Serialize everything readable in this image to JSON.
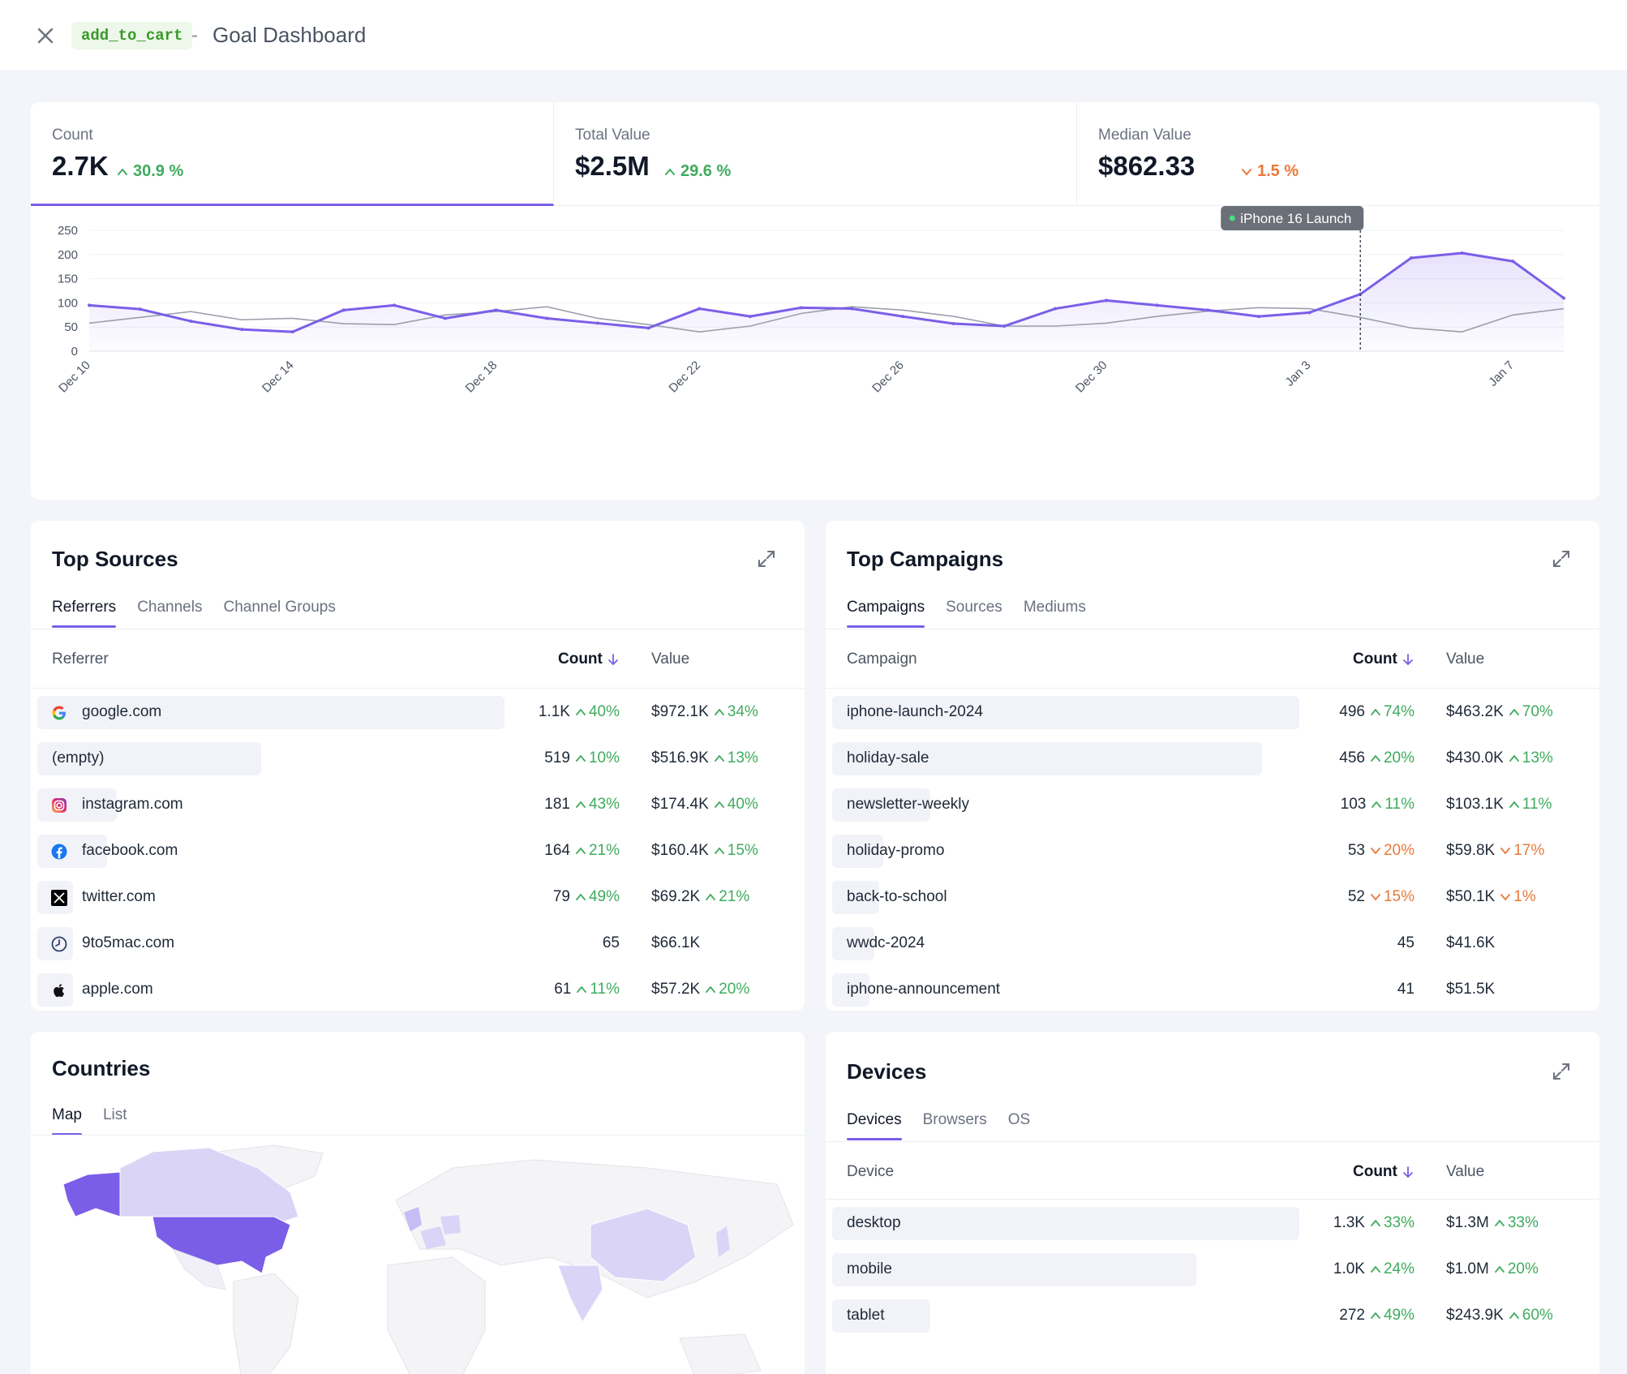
{
  "header": {
    "goal_tag": "add_to_cart",
    "separator": "-",
    "title": "Goal Dashboard"
  },
  "metrics": [
    {
      "label": "Count",
      "value": "2.7K",
      "delta": "30.9 %",
      "direction": "up"
    },
    {
      "label": "Total Value",
      "value": "$2.5M",
      "delta": "29.6 %",
      "direction": "up"
    },
    {
      "label": "Median Value",
      "value": "$862.33",
      "delta": "1.5 %",
      "direction": "down"
    }
  ],
  "chart_data": {
    "type": "line",
    "x": [
      "Dec 10",
      "Dec 11",
      "Dec 12",
      "Dec 13",
      "Dec 14",
      "Dec 15",
      "Dec 16",
      "Dec 17",
      "Dec 18",
      "Dec 19",
      "Dec 20",
      "Dec 21",
      "Dec 22",
      "Dec 23",
      "Dec 24",
      "Dec 25",
      "Dec 26",
      "Dec 27",
      "Dec 28",
      "Dec 29",
      "Dec 30",
      "Dec 31",
      "Jan 1",
      "Jan 2",
      "Jan 3",
      "Jan 4",
      "Jan 5",
      "Jan 6",
      "Jan 7",
      "Jan 8"
    ],
    "xticks": [
      "Dec 10",
      "Dec 14",
      "Dec 18",
      "Dec 22",
      "Dec 26",
      "Dec 30",
      "Jan 3",
      "Jan 7"
    ],
    "yticks": [
      0,
      50,
      100,
      150,
      200,
      250
    ],
    "ylim": [
      0,
      250
    ],
    "series": [
      {
        "role": "current",
        "color": "#7b5ee8",
        "values": [
          95,
          87,
          62,
          45,
          40,
          85,
          95,
          68,
          85,
          68,
          58,
          48,
          88,
          72,
          90,
          88,
          72,
          57,
          52,
          88,
          105,
          95,
          85,
          72,
          80,
          118,
          193,
          203,
          186,
          110
        ]
      },
      {
        "role": "previous",
        "color": "#9aa0aa",
        "values": [
          58,
          70,
          82,
          65,
          68,
          57,
          55,
          75,
          82,
          92,
          68,
          55,
          40,
          52,
          78,
          92,
          85,
          72,
          52,
          52,
          58,
          72,
          83,
          90,
          88,
          70,
          48,
          40,
          75,
          88
        ]
      }
    ],
    "annotation": {
      "label": "iPhone 16 Launch",
      "x": "Jan 4"
    }
  },
  "sources": {
    "title": "Top Sources",
    "tabs": [
      "Referrers",
      "Channels",
      "Channel Groups"
    ],
    "columns": {
      "name": "Referrer",
      "count": "Count",
      "value": "Value"
    },
    "rows": [
      {
        "icon": "google-icon",
        "name": "google.com",
        "count": "1.1K",
        "count_delta": "40%",
        "count_dir": "up",
        "value": "$972.1K",
        "value_delta": "34%",
        "value_dir": "up",
        "share": 1.0
      },
      {
        "icon": "",
        "name": "(empty)",
        "count": "519",
        "count_delta": "10%",
        "count_dir": "up",
        "value": "$516.9K",
        "value_delta": "13%",
        "value_dir": "up",
        "share": 0.48
      },
      {
        "icon": "instagram-icon",
        "name": "instagram.com",
        "count": "181",
        "count_delta": "43%",
        "count_dir": "up",
        "value": "$174.4K",
        "value_delta": "40%",
        "value_dir": "up",
        "share": 0.17
      },
      {
        "icon": "facebook-icon",
        "name": "facebook.com",
        "count": "164",
        "count_delta": "21%",
        "count_dir": "up",
        "value": "$160.4K",
        "value_delta": "15%",
        "value_dir": "up",
        "share": 0.15
      },
      {
        "icon": "x-twitter-icon",
        "name": "twitter.com",
        "count": "79",
        "count_delta": "49%",
        "count_dir": "up",
        "value": "$69.2K",
        "value_delta": "21%",
        "value_dir": "up",
        "share": 0.07
      },
      {
        "icon": "clock-icon",
        "name": "9to5mac.com",
        "count": "65",
        "count_delta": "",
        "count_dir": "",
        "value": "$66.1K",
        "value_delta": "",
        "value_dir": "",
        "share": 0.06
      },
      {
        "icon": "apple-icon",
        "name": "apple.com",
        "count": "61",
        "count_delta": "11%",
        "count_dir": "up",
        "value": "$57.2K",
        "value_delta": "20%",
        "value_dir": "up",
        "share": 0.06
      }
    ]
  },
  "campaigns": {
    "title": "Top Campaigns",
    "tabs": [
      "Campaigns",
      "Sources",
      "Mediums"
    ],
    "columns": {
      "name": "Campaign",
      "count": "Count",
      "value": "Value"
    },
    "rows": [
      {
        "name": "iphone-launch-2024",
        "count": "496",
        "count_delta": "74%",
        "count_dir": "up",
        "value": "$463.2K",
        "value_delta": "70%",
        "value_dir": "up",
        "share": 1.0
      },
      {
        "name": "holiday-sale",
        "count": "456",
        "count_delta": "20%",
        "count_dir": "up",
        "value": "$430.0K",
        "value_delta": "13%",
        "value_dir": "up",
        "share": 0.92
      },
      {
        "name": "newsletter-weekly",
        "count": "103",
        "count_delta": "11%",
        "count_dir": "up",
        "value": "$103.1K",
        "value_delta": "11%",
        "value_dir": "up",
        "share": 0.21
      },
      {
        "name": "holiday-promo",
        "count": "53",
        "count_delta": "20%",
        "count_dir": "down",
        "value": "$59.8K",
        "value_delta": "17%",
        "value_dir": "down",
        "share": 0.11
      },
      {
        "name": "back-to-school",
        "count": "52",
        "count_delta": "15%",
        "count_dir": "down",
        "value": "$50.1K",
        "value_delta": "1%",
        "value_dir": "down",
        "share": 0.1
      },
      {
        "name": "wwdc-2024",
        "count": "45",
        "count_delta": "",
        "count_dir": "",
        "value": "$41.6K",
        "value_delta": "",
        "value_dir": "",
        "share": 0.09
      },
      {
        "name": "iphone-announcement",
        "count": "41",
        "count_delta": "",
        "count_dir": "",
        "value": "$51.5K",
        "value_delta": "",
        "value_dir": "",
        "share": 0.08
      }
    ]
  },
  "countries": {
    "title": "Countries",
    "tabs": [
      "Map",
      "List"
    ]
  },
  "devices": {
    "title": "Devices",
    "tabs": [
      "Devices",
      "Browsers",
      "OS"
    ],
    "columns": {
      "name": "Device",
      "count": "Count",
      "value": "Value"
    },
    "rows": [
      {
        "name": "desktop",
        "count": "1.3K",
        "count_delta": "33%",
        "count_dir": "up",
        "value": "$1.3M",
        "value_delta": "33%",
        "value_dir": "up",
        "share": 1.0
      },
      {
        "name": "mobile",
        "count": "1.0K",
        "count_delta": "24%",
        "count_dir": "up",
        "value": "$1.0M",
        "value_delta": "20%",
        "value_dir": "up",
        "share": 0.78
      },
      {
        "name": "tablet",
        "count": "272",
        "count_delta": "49%",
        "count_dir": "up",
        "value": "$243.9K",
        "value_delta": "60%",
        "value_dir": "up",
        "share": 0.21
      }
    ]
  },
  "colors": {
    "accent": "#7b5ee8",
    "up": "#3fab5d",
    "down": "#e8793a",
    "bar": "#f2f3f9"
  }
}
